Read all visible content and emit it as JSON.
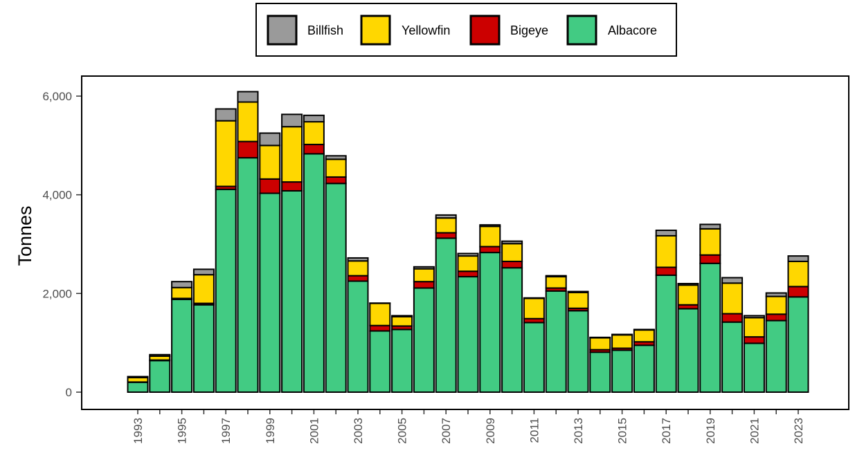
{
  "chart_data": {
    "type": "bar",
    "stacked": true,
    "title": "",
    "xlabel": "",
    "ylabel": "Tonnes",
    "ylim": [
      0,
      6400
    ],
    "grid": false,
    "legend_position": "top",
    "categories": [
      "1993",
      "1994",
      "1995",
      "1996",
      "1997",
      "1998",
      "1999",
      "2000",
      "2001",
      "2002",
      "2003",
      "2004",
      "2005",
      "2006",
      "2007",
      "2008",
      "2009",
      "2010",
      "2011",
      "2012",
      "2013",
      "2014",
      "2015",
      "2016",
      "2017",
      "2018",
      "2019",
      "2020",
      "2021",
      "2022",
      "2023"
    ],
    "x_tick_labels": [
      "1993",
      "1995",
      "1997",
      "1999",
      "2001",
      "2003",
      "2005",
      "2007",
      "2009",
      "2011",
      "2013",
      "2015",
      "2017",
      "2019",
      "2021",
      "2023"
    ],
    "y_ticks": [
      0,
      2000,
      4000,
      6000
    ],
    "y_tick_labels": [
      "0",
      "2,000",
      "4,000",
      "6,000"
    ],
    "series": [
      {
        "name": "Albacore",
        "color": "#42CB83",
        "values": [
          200,
          640,
          1880,
          1770,
          4110,
          4750,
          4030,
          4080,
          4830,
          4230,
          2250,
          1240,
          1270,
          2110,
          3120,
          2340,
          2830,
          2520,
          1410,
          2050,
          1650,
          810,
          850,
          950,
          2370,
          1690,
          2610,
          1420,
          990,
          1450,
          1930
        ]
      },
      {
        "name": "Bigeye",
        "color": "#CC0000",
        "values": [
          5,
          10,
          20,
          30,
          60,
          330,
          290,
          180,
          190,
          130,
          110,
          110,
          70,
          130,
          110,
          110,
          120,
          130,
          80,
          60,
          50,
          50,
          40,
          70,
          160,
          80,
          170,
          170,
          130,
          130,
          210
        ]
      },
      {
        "name": "Yellowfin",
        "color": "#FFD700",
        "values": [
          90,
          80,
          220,
          580,
          1330,
          800,
          680,
          1120,
          460,
          360,
          300,
          450,
          190,
          260,
          300,
          310,
          410,
          360,
          410,
          230,
          320,
          240,
          270,
          240,
          640,
          400,
          530,
          620,
          390,
          360,
          510
        ]
      },
      {
        "name": "Billfish",
        "color": "#9A9A9A",
        "values": [
          20,
          30,
          120,
          110,
          240,
          210,
          250,
          250,
          130,
          70,
          60,
          5,
          20,
          40,
          60,
          50,
          30,
          50,
          10,
          20,
          20,
          10,
          10,
          10,
          110,
          30,
          90,
          110,
          40,
          70,
          110
        ]
      }
    ],
    "legend_entries": [
      "Billfish",
      "Yellowfin",
      "Bigeye",
      "Albacore"
    ]
  }
}
